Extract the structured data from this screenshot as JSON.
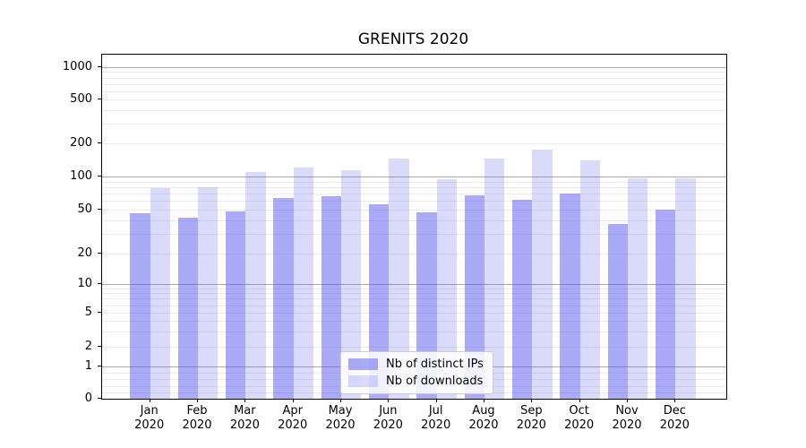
{
  "chart_data": {
    "type": "bar",
    "title": "GRENITS 2020",
    "year_label": "2020",
    "categories": [
      "Jan",
      "Feb",
      "Mar",
      "Apr",
      "May",
      "Jun",
      "Jul",
      "Aug",
      "Sep",
      "Oct",
      "Nov",
      "Dec"
    ],
    "series": [
      {
        "name": "Nb of distinct IPs",
        "color": "rgba(85,85,238,0.50)",
        "values": [
          46,
          42,
          48,
          64,
          66,
          56,
          47,
          68,
          61,
          70,
          37,
          50
        ]
      },
      {
        "name": "Nb of downloads",
        "color": "rgba(85,85,238,0.22)",
        "values": [
          78,
          80,
          110,
          120,
          115,
          145,
          95,
          145,
          175,
          140,
          97,
          97
        ]
      }
    ],
    "yscale": "symlog",
    "ytick_labels": [
      "0",
      "1",
      "2",
      "5",
      "10",
      "20",
      "50",
      "100",
      "200",
      "500",
      "1000"
    ],
    "ytick_values": [
      0,
      1,
      2,
      5,
      10,
      20,
      50,
      100,
      200,
      500,
      1000
    ],
    "ylim": [
      0,
      1400
    ],
    "grid": "both",
    "grid_major_color": "#ababab",
    "grid_minor_color": "#ebebeb",
    "legend_position": "lower center"
  }
}
